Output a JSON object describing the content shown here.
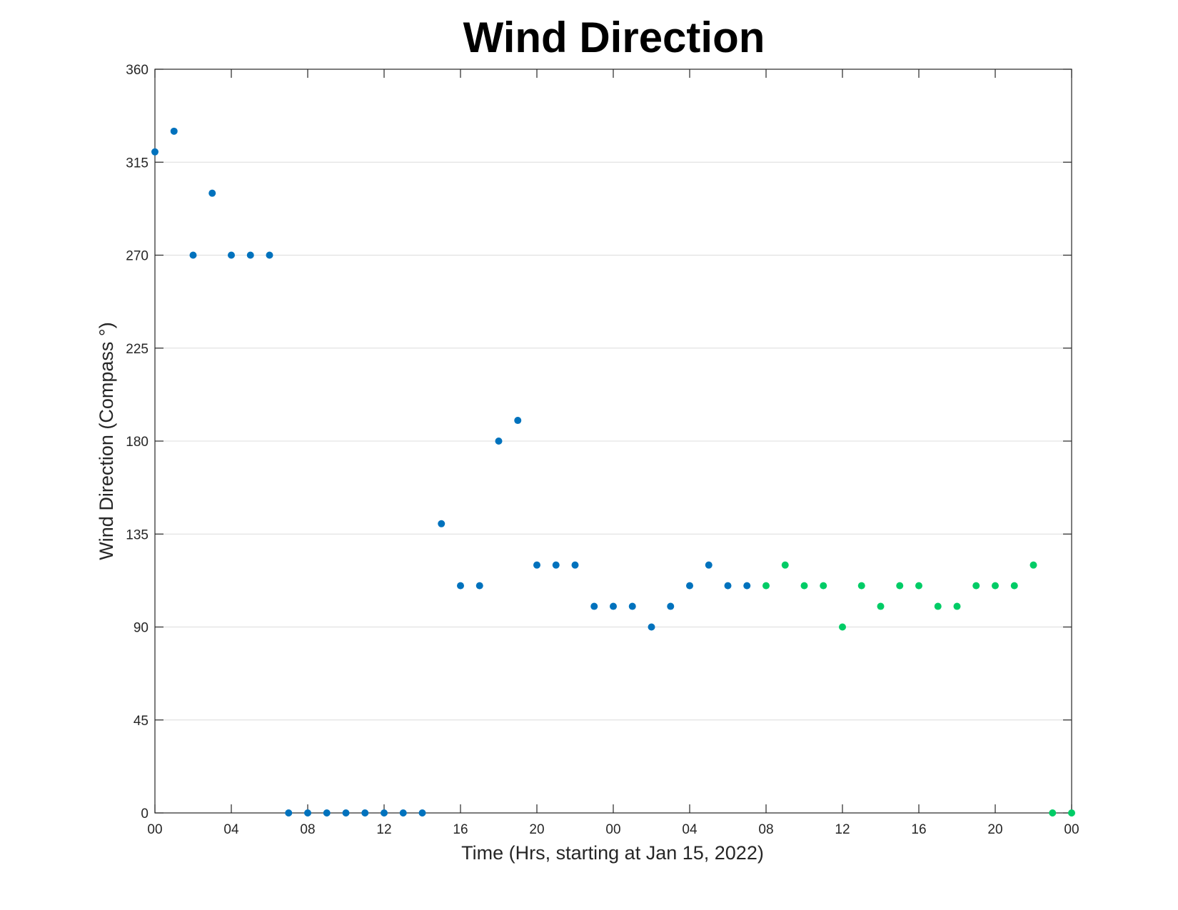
{
  "chart_data": {
    "type": "scatter",
    "title": "Wind Direction",
    "xlabel": "Time (Hrs, starting at Jan 15, 2022)",
    "ylabel": "Wind Direction (Compass °)",
    "ylim": [
      0,
      360
    ],
    "yticks": [
      0,
      45,
      90,
      135,
      180,
      225,
      270,
      315,
      360
    ],
    "xlim": [
      0,
      48
    ],
    "xticks": [
      0,
      4,
      8,
      12,
      16,
      20,
      24,
      28,
      32,
      36,
      40,
      44,
      48
    ],
    "xtick_labels": [
      "00",
      "04",
      "08",
      "12",
      "16",
      "20",
      "00",
      "04",
      "08",
      "12",
      "16",
      "20",
      "00"
    ],
    "grid": "y",
    "series": [
      {
        "color": "#0072bd",
        "points": [
          {
            "x": 0,
            "y": 320
          },
          {
            "x": 1,
            "y": 330
          },
          {
            "x": 2,
            "y": 270
          },
          {
            "x": 3,
            "y": 300
          },
          {
            "x": 4,
            "y": 270
          },
          {
            "x": 5,
            "y": 270
          },
          {
            "x": 6,
            "y": 270
          },
          {
            "x": 7,
            "y": 0
          },
          {
            "x": 8,
            "y": 0
          },
          {
            "x": 9,
            "y": 0
          },
          {
            "x": 10,
            "y": 0
          },
          {
            "x": 11,
            "y": 0
          },
          {
            "x": 12,
            "y": 0
          },
          {
            "x": 13,
            "y": 0
          },
          {
            "x": 14,
            "y": 0
          },
          {
            "x": 15,
            "y": 140
          },
          {
            "x": 16,
            "y": 110
          },
          {
            "x": 17,
            "y": 110
          },
          {
            "x": 18,
            "y": 180
          },
          {
            "x": 19,
            "y": 190
          },
          {
            "x": 20,
            "y": 120
          },
          {
            "x": 21,
            "y": 120
          },
          {
            "x": 22,
            "y": 120
          },
          {
            "x": 23,
            "y": 100
          },
          {
            "x": 24,
            "y": 100
          },
          {
            "x": 25,
            "y": 100
          },
          {
            "x": 26,
            "y": 90
          },
          {
            "x": 27,
            "y": 100
          },
          {
            "x": 28,
            "y": 110
          },
          {
            "x": 29,
            "y": 120
          },
          {
            "x": 30,
            "y": 110
          },
          {
            "x": 31,
            "y": 110
          }
        ]
      },
      {
        "color": "#00cc66",
        "points": [
          {
            "x": 32,
            "y": 110
          },
          {
            "x": 33,
            "y": 120
          },
          {
            "x": 34,
            "y": 110
          },
          {
            "x": 35,
            "y": 110
          },
          {
            "x": 36,
            "y": 90
          },
          {
            "x": 37,
            "y": 110
          },
          {
            "x": 38,
            "y": 100
          },
          {
            "x": 39,
            "y": 110
          },
          {
            "x": 40,
            "y": 110
          },
          {
            "x": 41,
            "y": 100
          },
          {
            "x": 42,
            "y": 100
          },
          {
            "x": 43,
            "y": 110
          },
          {
            "x": 44,
            "y": 110
          },
          {
            "x": 45,
            "y": 110
          },
          {
            "x": 46,
            "y": 120
          },
          {
            "x": 47,
            "y": 0
          },
          {
            "x": 48,
            "y": 0
          }
        ]
      }
    ]
  }
}
